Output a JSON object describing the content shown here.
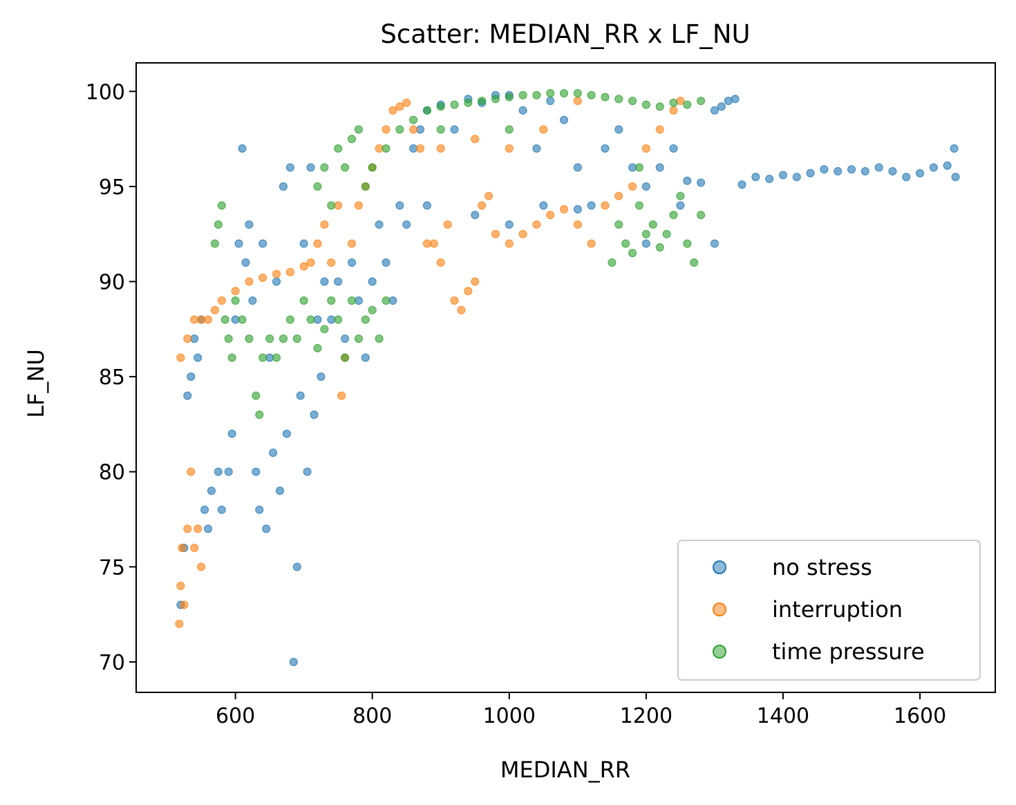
{
  "chart_data": {
    "type": "scatter",
    "title": "Scatter: MEDIAN_RR x LF_NU",
    "xlabel": "MEDIAN_RR",
    "ylabel": "LF_NU",
    "xlim": [
      455,
      1710
    ],
    "ylim": [
      68.4,
      101.5
    ],
    "xticks": [
      600,
      800,
      1000,
      1200,
      1400,
      1600
    ],
    "yticks": [
      70,
      75,
      80,
      85,
      90,
      95,
      100
    ],
    "xtick_labels": [
      "600",
      "800",
      "1000",
      "1200",
      "1400",
      "1600"
    ],
    "ytick_labels": [
      "70",
      "75",
      "80",
      "85",
      "90",
      "95",
      "100"
    ],
    "grid": false,
    "legend_position": "lower-right",
    "series": [
      {
        "name": "no stress",
        "color": "#1f77b4",
        "points": [
          [
            520,
            73
          ],
          [
            525,
            76
          ],
          [
            530,
            84
          ],
          [
            535,
            85
          ],
          [
            540,
            87
          ],
          [
            545,
            86
          ],
          [
            550,
            88
          ],
          [
            555,
            78
          ],
          [
            560,
            77
          ],
          [
            565,
            79
          ],
          [
            575,
            80
          ],
          [
            580,
            78
          ],
          [
            590,
            80
          ],
          [
            595,
            82
          ],
          [
            600,
            88
          ],
          [
            605,
            92
          ],
          [
            610,
            97
          ],
          [
            615,
            91
          ],
          [
            620,
            93
          ],
          [
            625,
            89
          ],
          [
            630,
            80
          ],
          [
            635,
            78
          ],
          [
            640,
            92
          ],
          [
            645,
            77
          ],
          [
            650,
            86
          ],
          [
            655,
            81
          ],
          [
            660,
            90
          ],
          [
            665,
            79
          ],
          [
            670,
            95
          ],
          [
            675,
            82
          ],
          [
            680,
            96
          ],
          [
            685,
            70
          ],
          [
            690,
            75
          ],
          [
            695,
            84
          ],
          [
            700,
            92
          ],
          [
            705,
            80
          ],
          [
            710,
            96
          ],
          [
            715,
            83
          ],
          [
            720,
            88
          ],
          [
            725,
            85
          ],
          [
            730,
            90
          ],
          [
            740,
            88
          ],
          [
            750,
            90
          ],
          [
            760,
            87
          ],
          [
            770,
            91
          ],
          [
            780,
            89
          ],
          [
            790,
            86
          ],
          [
            800,
            90
          ],
          [
            810,
            93
          ],
          [
            820,
            91
          ],
          [
            830,
            89
          ],
          [
            840,
            94
          ],
          [
            850,
            93
          ],
          [
            860,
            97
          ],
          [
            870,
            98
          ],
          [
            880,
            99
          ],
          [
            900,
            99.3
          ],
          [
            920,
            98
          ],
          [
            940,
            99.6
          ],
          [
            960,
            99.4
          ],
          [
            980,
            99.8
          ],
          [
            1000,
            99.8
          ],
          [
            1020,
            99
          ],
          [
            1040,
            97
          ],
          [
            1060,
            99.5
          ],
          [
            1080,
            98.5
          ],
          [
            1100,
            96
          ],
          [
            1120,
            94
          ],
          [
            1140,
            97
          ],
          [
            1160,
            98
          ],
          [
            1180,
            96
          ],
          [
            1200,
            95
          ],
          [
            1220,
            96
          ],
          [
            1240,
            97
          ],
          [
            1260,
            95.3
          ],
          [
            1280,
            95.2
          ],
          [
            1300,
            99
          ],
          [
            1310,
            99.2
          ],
          [
            1320,
            99.5
          ],
          [
            1330,
            99.6
          ],
          [
            1340,
            95.1
          ],
          [
            1360,
            95.5
          ],
          [
            1380,
            95.4
          ],
          [
            1400,
            95.6
          ],
          [
            1420,
            95.5
          ],
          [
            1440,
            95.7
          ],
          [
            1460,
            95.9
          ],
          [
            1480,
            95.8
          ],
          [
            1500,
            95.9
          ],
          [
            1520,
            95.8
          ],
          [
            1540,
            96
          ],
          [
            1560,
            95.8
          ],
          [
            1580,
            95.5
          ],
          [
            1600,
            95.7
          ],
          [
            1620,
            96
          ],
          [
            1640,
            96.1
          ],
          [
            1650,
            97
          ],
          [
            1652,
            95.5
          ],
          [
            880,
            94
          ],
          [
            950,
            93.5
          ],
          [
            1000,
            93
          ],
          [
            1050,
            94
          ],
          [
            1100,
            93.8
          ],
          [
            1200,
            92
          ],
          [
            1250,
            94
          ],
          [
            1300,
            92
          ]
        ]
      },
      {
        "name": "interruption",
        "color": "#ff7f0e",
        "points": [
          [
            518,
            72
          ],
          [
            520,
            74
          ],
          [
            522,
            76
          ],
          [
            525,
            73
          ],
          [
            530,
            77
          ],
          [
            535,
            80
          ],
          [
            540,
            76
          ],
          [
            545,
            77
          ],
          [
            550,
            75
          ],
          [
            520,
            86
          ],
          [
            530,
            87
          ],
          [
            540,
            88
          ],
          [
            550,
            88
          ],
          [
            560,
            88
          ],
          [
            570,
            88.5
          ],
          [
            580,
            89
          ],
          [
            600,
            89.5
          ],
          [
            620,
            90
          ],
          [
            640,
            90.2
          ],
          [
            660,
            90.4
          ],
          [
            680,
            90.5
          ],
          [
            700,
            90.8
          ],
          [
            710,
            91
          ],
          [
            720,
            92
          ],
          [
            730,
            93
          ],
          [
            740,
            91
          ],
          [
            750,
            94
          ],
          [
            755,
            84
          ],
          [
            760,
            86
          ],
          [
            770,
            92
          ],
          [
            780,
            94
          ],
          [
            790,
            95
          ],
          [
            800,
            96
          ],
          [
            810,
            97
          ],
          [
            820,
            98
          ],
          [
            830,
            99
          ],
          [
            840,
            99.2
          ],
          [
            850,
            99.4
          ],
          [
            860,
            98
          ],
          [
            870,
            97
          ],
          [
            880,
            92
          ],
          [
            890,
            92
          ],
          [
            900,
            91
          ],
          [
            910,
            93
          ],
          [
            920,
            89
          ],
          [
            930,
            88.5
          ],
          [
            940,
            89.5
          ],
          [
            950,
            90
          ],
          [
            960,
            94
          ],
          [
            970,
            94.5
          ],
          [
            980,
            92.5
          ],
          [
            1000,
            92
          ],
          [
            1020,
            92.5
          ],
          [
            1040,
            93
          ],
          [
            1060,
            93.5
          ],
          [
            1080,
            93.8
          ],
          [
            1100,
            93
          ],
          [
            1120,
            92
          ],
          [
            1140,
            94
          ],
          [
            1160,
            94.5
          ],
          [
            1180,
            95
          ],
          [
            1200,
            97
          ],
          [
            1220,
            98
          ],
          [
            1240,
            99
          ],
          [
            1250,
            99.5
          ],
          [
            1100,
            99.5
          ],
          [
            1000,
            97
          ],
          [
            900,
            97
          ],
          [
            950,
            97.5
          ],
          [
            1050,
            98
          ]
        ]
      },
      {
        "name": "time pressure",
        "color": "#2ca02c",
        "points": [
          [
            570,
            92
          ],
          [
            575,
            93
          ],
          [
            580,
            94
          ],
          [
            585,
            88
          ],
          [
            590,
            87
          ],
          [
            595,
            86
          ],
          [
            600,
            89
          ],
          [
            610,
            88
          ],
          [
            620,
            87
          ],
          [
            630,
            84
          ],
          [
            635,
            83
          ],
          [
            640,
            86
          ],
          [
            650,
            87
          ],
          [
            660,
            86
          ],
          [
            670,
            87
          ],
          [
            680,
            88
          ],
          [
            690,
            87
          ],
          [
            700,
            89
          ],
          [
            710,
            88
          ],
          [
            720,
            86.5
          ],
          [
            730,
            87.5
          ],
          [
            740,
            89
          ],
          [
            750,
            88
          ],
          [
            760,
            86
          ],
          [
            770,
            89
          ],
          [
            780,
            87
          ],
          [
            790,
            88
          ],
          [
            800,
            88.5
          ],
          [
            810,
            87
          ],
          [
            820,
            89
          ],
          [
            720,
            95
          ],
          [
            730,
            96
          ],
          [
            740,
            94
          ],
          [
            750,
            97
          ],
          [
            760,
            96
          ],
          [
            770,
            97.5
          ],
          [
            780,
            98
          ],
          [
            790,
            95
          ],
          [
            800,
            96
          ],
          [
            820,
            97
          ],
          [
            840,
            98
          ],
          [
            860,
            98.5
          ],
          [
            880,
            99
          ],
          [
            900,
            99.2
          ],
          [
            920,
            99.3
          ],
          [
            940,
            99.4
          ],
          [
            960,
            99.5
          ],
          [
            980,
            99.6
          ],
          [
            1000,
            99.7
          ],
          [
            1020,
            99.8
          ],
          [
            1040,
            99.8
          ],
          [
            1060,
            99.9
          ],
          [
            1080,
            99.9
          ],
          [
            1100,
            99.9
          ],
          [
            1120,
            99.8
          ],
          [
            1140,
            99.7
          ],
          [
            1160,
            99.6
          ],
          [
            1180,
            99.5
          ],
          [
            1200,
            99.3
          ],
          [
            1220,
            99.2
          ],
          [
            1240,
            99.4
          ],
          [
            1260,
            99.3
          ],
          [
            1280,
            99.5
          ],
          [
            1150,
            91
          ],
          [
            1160,
            93
          ],
          [
            1170,
            92
          ],
          [
            1180,
            91.5
          ],
          [
            1190,
            94
          ],
          [
            1200,
            92.5
          ],
          [
            1210,
            93
          ],
          [
            1220,
            91.8
          ],
          [
            1230,
            92.5
          ],
          [
            1240,
            93.5
          ],
          [
            1250,
            94.5
          ],
          [
            1260,
            92
          ],
          [
            1270,
            91
          ],
          [
            1280,
            93.5
          ],
          [
            1190,
            96
          ],
          [
            1000,
            98
          ],
          [
            900,
            98
          ]
        ]
      }
    ]
  }
}
